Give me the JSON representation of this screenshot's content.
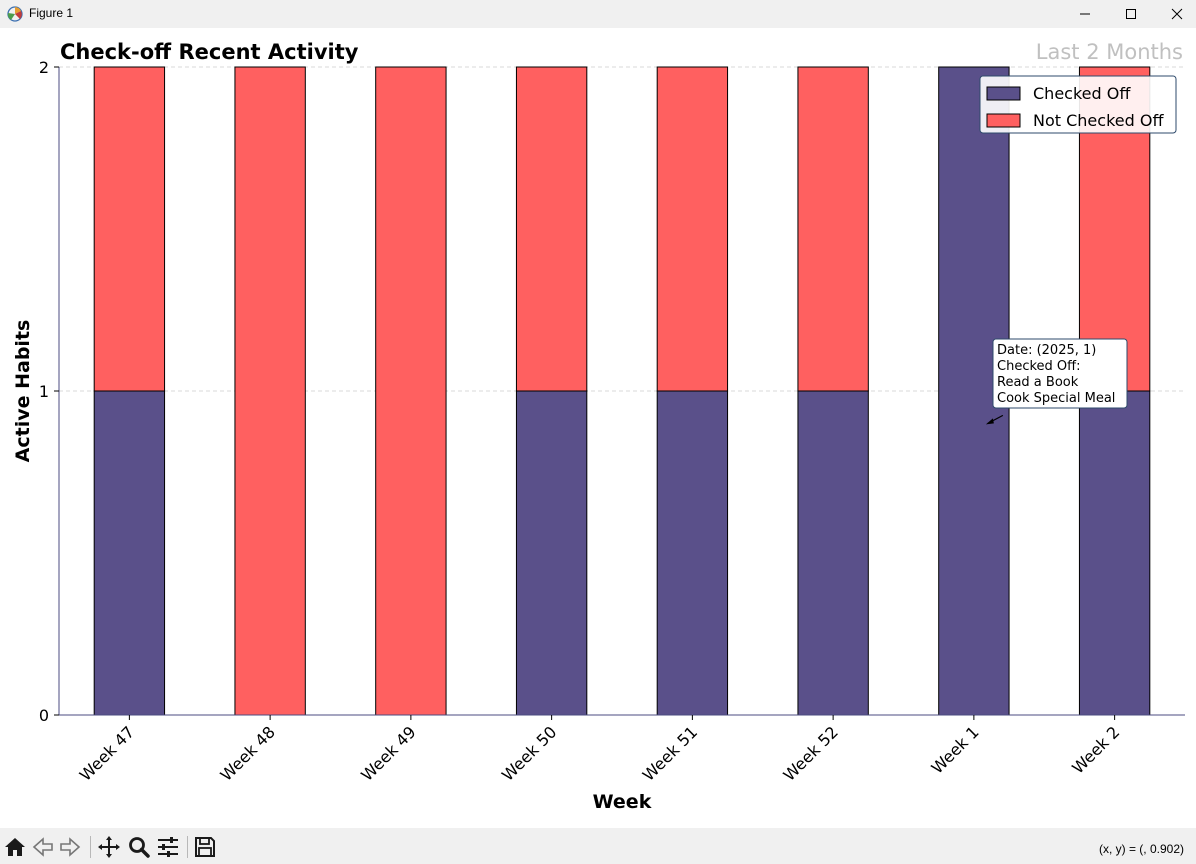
{
  "window": {
    "title": "Figure 1",
    "icon": "matplotlib-figure-icon",
    "controls": [
      "minimize-icon",
      "maximize-icon",
      "close-icon"
    ]
  },
  "chart_data": {
    "type": "bar",
    "stacked": true,
    "title": "Check-off Recent Activity",
    "subtitle": "Last 2 Months",
    "xlabel": "Week",
    "ylabel": "Active Habits",
    "categories": [
      "Week 47",
      "Week 48",
      "Week 49",
      "Week 50",
      "Week 51",
      "Week 52",
      "Week 1",
      "Week 2"
    ],
    "ylim": [
      0,
      2
    ],
    "yticks": [
      "0",
      "1",
      "2"
    ],
    "grid": "horizontal dashed",
    "legend_position": "top-right",
    "series": [
      {
        "name": "Checked Off",
        "values": [
          1,
          0,
          0,
          1,
          1,
          1,
          2,
          1
        ],
        "color": "#5a508a"
      },
      {
        "name": "Not Checked Off",
        "values": [
          1,
          2,
          2,
          1,
          1,
          1,
          0,
          1
        ],
        "color": "#ff6060"
      }
    ],
    "annotation": {
      "category": "Week 1",
      "lines": [
        "Date: (2025, 1)",
        "Checked Off:",
        "Read a Book",
        "Cook Special Meal"
      ]
    }
  },
  "toolbar": {
    "buttons": [
      "home-icon",
      "back-icon",
      "forward-icon",
      "pan-icon",
      "zoom-icon",
      "configure-subplots-icon",
      "save-icon"
    ],
    "coordinates": "(x, y) = (, 0.902)"
  }
}
